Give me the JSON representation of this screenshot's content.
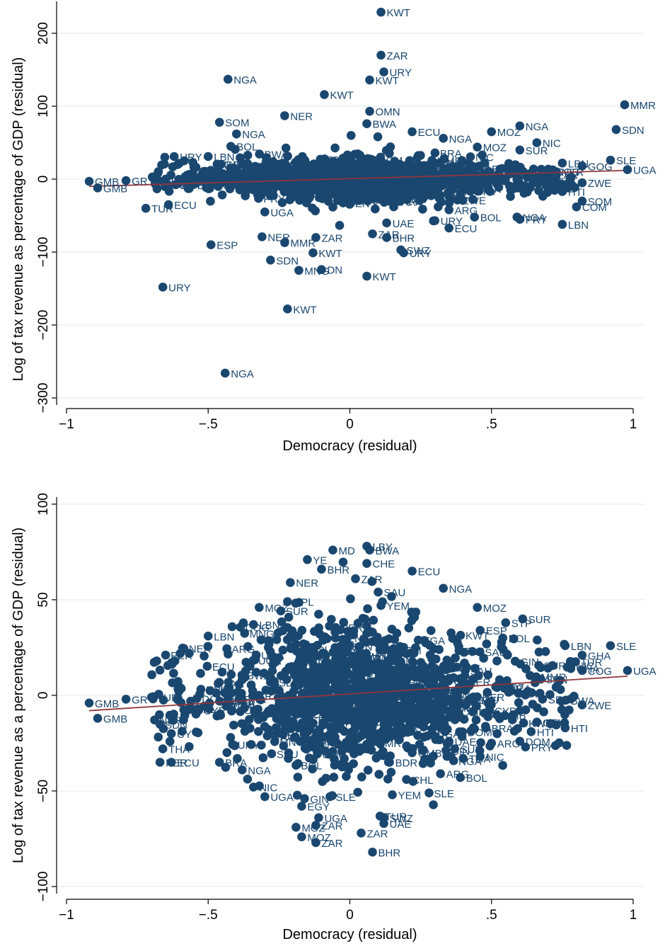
{
  "colors": {
    "marker": "#1a476f",
    "fit_line": "#90353b",
    "grid": "#eaf2f3",
    "axis": "#000000"
  },
  "chart_data": [
    {
      "type": "scatter",
      "xlabel": "Democracy (residual)",
      "ylabel": "Log of tax revenue as percentage of GDP (residual)",
      "xlim": [
        -1,
        1
      ],
      "ylim": [
        -300,
        200
      ],
      "xticks": [
        -1,
        -0.5,
        0,
        0.5,
        1
      ],
      "xtick_labels": [
        "−1",
        "−.5",
        "0",
        ".5",
        "1"
      ],
      "yticks": [
        -300,
        -200,
        -100,
        0,
        100,
        200
      ],
      "ytick_labels": [
        "−300",
        "−200",
        "−100",
        "0",
        "100",
        "200"
      ],
      "grid": true,
      "fit_line": [
        [
          -0.92,
          -10
        ],
        [
          0.98,
          12
        ]
      ],
      "labeled_points": [
        {
          "x": 0.11,
          "y": 229,
          "label": "KWT"
        },
        {
          "x": 0.11,
          "y": 170,
          "label": "ZAR"
        },
        {
          "x": 0.12,
          "y": 147,
          "label": "URY"
        },
        {
          "x": 0.07,
          "y": 136,
          "label": "KWT"
        },
        {
          "x": -0.43,
          "y": 137,
          "label": "NGA"
        },
        {
          "x": -0.09,
          "y": 116,
          "label": "KWT"
        },
        {
          "x": 0.97,
          "y": 102,
          "label": "MMR"
        },
        {
          "x": 0.07,
          "y": 93,
          "label": "OMN"
        },
        {
          "x": -0.23,
          "y": 87,
          "label": "NER"
        },
        {
          "x": 0.94,
          "y": 68,
          "label": "SDN"
        },
        {
          "x": -0.46,
          "y": 78,
          "label": "SOM"
        },
        {
          "x": 0.6,
          "y": 73,
          "label": "NGA"
        },
        {
          "x": 0.22,
          "y": 65,
          "label": "ECU"
        },
        {
          "x": 0.5,
          "y": 65,
          "label": "MOZ"
        },
        {
          "x": 0.33,
          "y": 56,
          "label": "NGA"
        },
        {
          "x": 0.66,
          "y": 50,
          "label": "NIC"
        },
        {
          "x": 0.45,
          "y": 44,
          "label": "MOZ"
        },
        {
          "x": -0.42,
          "y": 45,
          "label": "BOL"
        },
        {
          "x": -0.4,
          "y": 62,
          "label": "NGA"
        },
        {
          "x": 0.06,
          "y": 76,
          "label": "BWA"
        },
        {
          "x": 0.6,
          "y": 40,
          "label": "SUR"
        },
        {
          "x": -0.62,
          "y": 31,
          "label": "URY"
        },
        {
          "x": -0.5,
          "y": 31,
          "label": "LBN"
        },
        {
          "x": 0.92,
          "y": 26,
          "label": "SLE"
        },
        {
          "x": 0.98,
          "y": 13,
          "label": "UGA"
        },
        {
          "x": 0.75,
          "y": 22,
          "label": "LBN"
        },
        {
          "x": 0.82,
          "y": 18,
          "label": "GOG"
        },
        {
          "x": 0.82,
          "y": -5,
          "label": "ZWE"
        },
        {
          "x": 0.75,
          "y": -17,
          "label": "HTI"
        },
        {
          "x": 0.82,
          "y": -30,
          "label": "SOM"
        },
        {
          "x": 0.8,
          "y": -38,
          "label": "COM"
        },
        {
          "x": 0.75,
          "y": -62,
          "label": "LBN"
        },
        {
          "x": 0.6,
          "y": -55,
          "label": "PRY"
        },
        {
          "x": 0.59,
          "y": -52,
          "label": "NGA"
        },
        {
          "x": 0.44,
          "y": -52,
          "label": "BOL"
        },
        {
          "x": 0.35,
          "y": -42,
          "label": "ARG"
        },
        {
          "x": 0.35,
          "y": -67,
          "label": "ECU"
        },
        {
          "x": 0.3,
          "y": -57,
          "label": "URY"
        },
        {
          "x": 0.13,
          "y": -60,
          "label": "UAE"
        },
        {
          "x": 0.13,
          "y": -80,
          "label": "BHR"
        },
        {
          "x": 0.08,
          "y": -75,
          "label": "ZAR"
        },
        {
          "x": -0.12,
          "y": -80,
          "label": "ZAR"
        },
        {
          "x": -0.23,
          "y": -87,
          "label": "MMR"
        },
        {
          "x": -0.31,
          "y": -79,
          "label": "NER"
        },
        {
          "x": -0.49,
          "y": -90,
          "label": "ESP"
        },
        {
          "x": 0.18,
          "y": -97,
          "label": "SWZ"
        },
        {
          "x": 0.19,
          "y": -101,
          "label": "URY"
        },
        {
          "x": -0.13,
          "y": -101,
          "label": "KWT"
        },
        {
          "x": -0.28,
          "y": -111,
          "label": "SDN"
        },
        {
          "x": -0.1,
          "y": -124,
          "label": "DN"
        },
        {
          "x": -0.18,
          "y": -125,
          "label": "MNG"
        },
        {
          "x": 0.06,
          "y": -133,
          "label": "KWT"
        },
        {
          "x": -0.66,
          "y": -148,
          "label": "URY"
        },
        {
          "x": -0.22,
          "y": -178,
          "label": "KWT"
        },
        {
          "x": -0.44,
          "y": -266,
          "label": "NGA"
        },
        {
          "x": -0.3,
          "y": -45,
          "label": "UGA"
        },
        {
          "x": -0.92,
          "y": -3,
          "label": "GMB"
        },
        {
          "x": -0.89,
          "y": -12,
          "label": "GMB"
        },
        {
          "x": -0.79,
          "y": -2,
          "label": "GR"
        },
        {
          "x": -0.72,
          "y": -40,
          "label": "TUR"
        },
        {
          "x": -0.64,
          "y": -35,
          "label": "ECU"
        }
      ]
    },
    {
      "type": "scatter",
      "xlabel": "Democracy (residual)",
      "ylabel": "Log of tax revenue as a percentage of GDP (residual)",
      "xlim": [
        -1,
        1
      ],
      "ylim": [
        -100,
        100
      ],
      "xticks": [
        -1,
        -0.5,
        0,
        0.5,
        1
      ],
      "xtick_labels": [
        "−1",
        "−.5",
        "0",
        ".5",
        "1"
      ],
      "yticks": [
        -100,
        -50,
        0,
        50,
        100
      ],
      "ytick_labels": [
        "−100",
        "−50",
        "0",
        "50",
        "100"
      ],
      "grid": true,
      "fit_line": [
        [
          -0.92,
          -8
        ],
        [
          0.98,
          10
        ]
      ],
      "labeled_points": [
        {
          "x": 0.06,
          "y": 78,
          "label": "LBY"
        },
        {
          "x": 0.07,
          "y": 76,
          "label": "BWA"
        },
        {
          "x": -0.06,
          "y": 76,
          "label": "MD"
        },
        {
          "x": -0.15,
          "y": 71,
          "label": "YE"
        },
        {
          "x": 0.06,
          "y": 69,
          "label": "CHE"
        },
        {
          "x": -0.1,
          "y": 66,
          "label": "BHR"
        },
        {
          "x": 0.22,
          "y": 65,
          "label": "ECU"
        },
        {
          "x": 0.02,
          "y": 61,
          "label": "ZAR"
        },
        {
          "x": 0.33,
          "y": 56,
          "label": "NGA"
        },
        {
          "x": -0.21,
          "y": 59,
          "label": "NER"
        },
        {
          "x": 0.1,
          "y": 54,
          "label": "SAU"
        },
        {
          "x": -0.22,
          "y": 49,
          "label": "NPL"
        },
        {
          "x": -0.32,
          "y": 46,
          "label": "MOZ"
        },
        {
          "x": 0.45,
          "y": 46,
          "label": "MOZ"
        },
        {
          "x": 0.11,
          "y": 47,
          "label": "YEM"
        },
        {
          "x": 0.61,
          "y": 40,
          "label": "SUR"
        },
        {
          "x": 0.55,
          "y": 38,
          "label": "STP"
        },
        {
          "x": -0.34,
          "y": 37,
          "label": "LBN"
        },
        {
          "x": 0.46,
          "y": 34,
          "label": "ESP"
        },
        {
          "x": 0.54,
          "y": 30,
          "label": "BOL"
        },
        {
          "x": -0.5,
          "y": 31,
          "label": "LBN"
        },
        {
          "x": 0.76,
          "y": 26,
          "label": "LBN"
        },
        {
          "x": 0.92,
          "y": 26,
          "label": "SLE"
        },
        {
          "x": 0.82,
          "y": 21,
          "label": "GHA"
        },
        {
          "x": 0.98,
          "y": 13,
          "label": "UGA"
        },
        {
          "x": 0.82,
          "y": 13,
          "label": "COG"
        },
        {
          "x": 0.78,
          "y": 14,
          "label": "GHA"
        },
        {
          "x": 0.68,
          "y": -2,
          "label": "SEN"
        },
        {
          "x": 0.82,
          "y": -5,
          "label": "ZWE"
        },
        {
          "x": 0.66,
          "y": -14,
          "label": "GTM"
        },
        {
          "x": 0.64,
          "y": -19,
          "label": "HTI"
        },
        {
          "x": 0.76,
          "y": -17,
          "label": "HTI"
        },
        {
          "x": 0.48,
          "y": -17,
          "label": "BRA"
        },
        {
          "x": 0.6,
          "y": -24,
          "label": "DOM"
        },
        {
          "x": 0.5,
          "y": -25,
          "label": "ARG"
        },
        {
          "x": 0.62,
          "y": -27,
          "label": "PRY"
        },
        {
          "x": 0.46,
          "y": -32,
          "label": "NIC"
        },
        {
          "x": 0.39,
          "y": -43,
          "label": "BOL"
        },
        {
          "x": 0.32,
          "y": -41,
          "label": "ARG"
        },
        {
          "x": 0.2,
          "y": -44,
          "label": "CHL"
        },
        {
          "x": 0.24,
          "y": -21,
          "label": "PER"
        },
        {
          "x": 0.35,
          "y": -24,
          "label": "UAE"
        },
        {
          "x": 0.37,
          "y": -28,
          "label": "SUR"
        },
        {
          "x": 0.4,
          "y": -33,
          "label": "TGA"
        },
        {
          "x": 0.22,
          "y": -30,
          "label": "GMB"
        },
        {
          "x": 0.27,
          "y": -13,
          "label": "ESP"
        },
        {
          "x": 0.25,
          "y": -4,
          "label": "SLV"
        },
        {
          "x": 0.14,
          "y": -35,
          "label": "BDR"
        },
        {
          "x": 0.15,
          "y": -52,
          "label": "YEM"
        },
        {
          "x": 0.12,
          "y": -64,
          "label": "SWZ"
        },
        {
          "x": 0.12,
          "y": -67,
          "label": "UAE"
        },
        {
          "x": 0.04,
          "y": -72,
          "label": "ZAR"
        },
        {
          "x": 0.08,
          "y": -82,
          "label": "BHR"
        },
        {
          "x": -0.12,
          "y": -68,
          "label": "ZAR"
        },
        {
          "x": -0.19,
          "y": -69,
          "label": "MOZ"
        },
        {
          "x": -0.17,
          "y": -74,
          "label": "MOZ"
        },
        {
          "x": -0.12,
          "y": -77,
          "label": "ZAR"
        },
        {
          "x": -0.11,
          "y": -64,
          "label": "UGA"
        },
        {
          "x": -0.17,
          "y": -58,
          "label": "EGY"
        },
        {
          "x": -0.16,
          "y": -54,
          "label": "GIN"
        },
        {
          "x": -0.07,
          "y": -53,
          "label": "SLE"
        },
        {
          "x": -0.3,
          "y": -53,
          "label": "UGA"
        },
        {
          "x": -0.34,
          "y": -48,
          "label": "NIC"
        },
        {
          "x": -0.38,
          "y": -39,
          "label": "NGA"
        },
        {
          "x": -0.46,
          "y": -35,
          "label": "BRA"
        },
        {
          "x": -0.67,
          "y": -35,
          "label": "PER"
        },
        {
          "x": -0.63,
          "y": -35,
          "label": "ECU"
        },
        {
          "x": -0.66,
          "y": -28,
          "label": "THA"
        },
        {
          "x": -0.63,
          "y": -20,
          "label": "CY"
        },
        {
          "x": -0.92,
          "y": -4,
          "label": "GMB"
        },
        {
          "x": -0.89,
          "y": -12,
          "label": "GMB"
        },
        {
          "x": -0.79,
          "y": -2,
          "label": "GR"
        },
        {
          "x": -0.7,
          "y": -1,
          "label": "TUR"
        }
      ]
    }
  ]
}
